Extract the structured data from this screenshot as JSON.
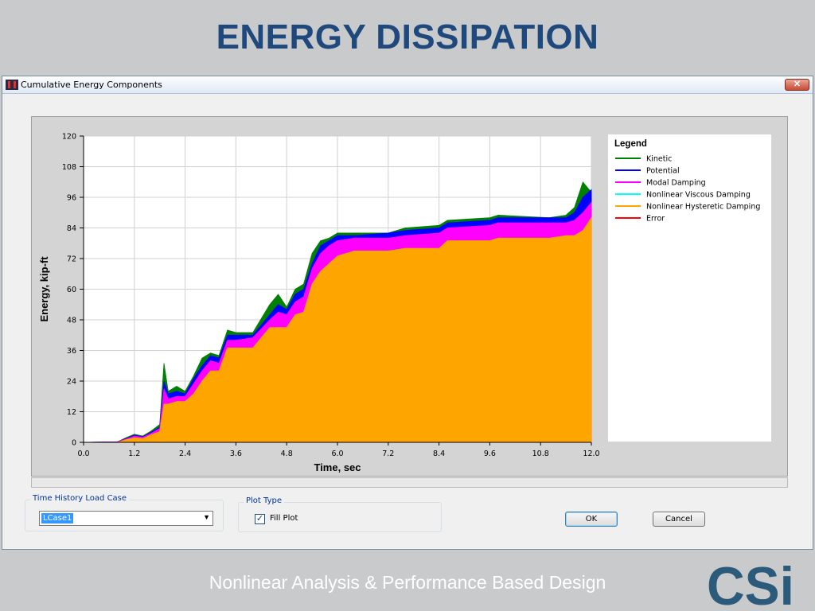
{
  "slide": {
    "title": "ENERGY DISSIPATION",
    "footer": "Nonlinear Analysis & Performance Based Design",
    "logo_text": "CSi"
  },
  "window": {
    "title": "Cumulative Energy Components",
    "close_glyph": "✕"
  },
  "controls": {
    "load_case_group": "Time History Load Case",
    "load_case_value": "LCase1",
    "plot_type_group": "Plot Type",
    "fill_plot_label": "Fill Plot",
    "fill_plot_checked": true,
    "ok_label": "OK",
    "cancel_label": "Cancel"
  },
  "icons": {
    "close": "close-icon",
    "dropdown": "chevron-down-icon",
    "check": "checkmark-icon",
    "app": "app-logo-icon"
  },
  "chart_data": {
    "type": "area",
    "xlabel": "Time, sec",
    "ylabel": "Energy, kip-ft",
    "xlim": [
      0,
      12
    ],
    "ylim": [
      0,
      120
    ],
    "xticks": [
      "0.0",
      "1.2",
      "2.4",
      "3.6",
      "4.8",
      "6.0",
      "7.2",
      "8.4",
      "9.6",
      "10.8",
      "12.0"
    ],
    "yticks": [
      "0",
      "12",
      "24",
      "36",
      "48",
      "60",
      "72",
      "84",
      "96",
      "108",
      "120"
    ],
    "grid": true,
    "legend_title": "Legend",
    "legend_position": "right",
    "x": [
      0,
      0.8,
      1.0,
      1.2,
      1.4,
      1.6,
      1.8,
      1.9,
      2.0,
      2.2,
      2.4,
      2.6,
      2.8,
      3.0,
      3.2,
      3.4,
      3.6,
      4.0,
      4.4,
      4.6,
      4.8,
      5.0,
      5.2,
      5.4,
      5.6,
      5.8,
      6.0,
      6.4,
      7.2,
      7.6,
      8.4,
      8.6,
      9.6,
      9.8,
      11.0,
      11.4,
      11.6,
      11.8,
      12.0
    ],
    "series": [
      {
        "name": "Kinetic",
        "color": "#008000",
        "values": [
          0,
          0.2,
          1.8,
          3.2,
          2.5,
          4.5,
          7,
          31,
          20,
          22,
          20,
          26,
          33,
          35,
          34,
          44,
          43,
          43,
          54,
          58,
          53,
          60,
          62,
          74,
          79,
          80,
          82,
          82,
          82,
          84,
          85,
          87,
          88,
          89,
          88,
          89,
          92,
          102,
          98
        ]
      },
      {
        "name": "Potential",
        "color": "#0000ff",
        "values": [
          0,
          0.2,
          1.5,
          2.8,
          2.2,
          4,
          6,
          24,
          19,
          20,
          19,
          25,
          30,
          34,
          33,
          42,
          42,
          42,
          50,
          54,
          52,
          58,
          60,
          70,
          77,
          79,
          81,
          81,
          82,
          83,
          84,
          86,
          87,
          88,
          88,
          88,
          90,
          96,
          99
        ]
      },
      {
        "name": "Modal Damping",
        "color": "#ff00ff",
        "values": [
          0,
          0.2,
          1.3,
          2.5,
          2.0,
          3.6,
          5.5,
          21,
          17,
          18,
          18,
          23,
          28,
          32,
          31,
          40,
          40,
          41,
          48,
          51,
          50,
          55,
          57,
          68,
          74,
          77,
          79,
          80,
          80,
          81,
          82,
          84,
          85,
          86,
          86,
          86,
          87,
          90,
          94
        ]
      },
      {
        "name": "Nonlinear Viscous Damping",
        "color": "#00ffff",
        "values": [
          0,
          0,
          0,
          0,
          0,
          0,
          0,
          0,
          0,
          0,
          0,
          0,
          0,
          0,
          0,
          0,
          0,
          0,
          0,
          0,
          0,
          0,
          0,
          0,
          0,
          0,
          0,
          0,
          0,
          0,
          0,
          0,
          0,
          0,
          0,
          0,
          0,
          0,
          0
        ]
      },
      {
        "name": "Nonlinear Hysteretic Damping",
        "color": "#ffa500",
        "values": [
          0,
          0,
          1.0,
          1.8,
          1.5,
          3.0,
          4.2,
          15,
          15,
          16,
          16,
          19,
          24,
          28,
          28,
          37,
          37,
          37,
          45,
          45,
          45,
          50,
          51,
          62,
          67,
          70,
          73,
          75,
          75,
          76,
          76,
          79,
          79,
          80,
          80,
          81,
          81,
          83,
          88
        ]
      },
      {
        "name": "Error",
        "color": "#ff0000",
        "values": [
          0,
          0,
          0,
          0,
          0,
          0,
          0,
          0,
          0,
          0,
          0,
          0,
          0,
          0,
          0,
          0,
          0,
          0,
          0,
          0,
          0,
          0,
          0,
          0,
          0,
          0,
          0,
          0,
          0,
          0,
          0,
          0,
          0,
          0,
          0,
          0,
          0,
          0,
          0
        ]
      }
    ]
  }
}
